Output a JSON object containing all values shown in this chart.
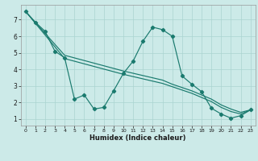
{
  "xlabel": "Humidex (Indice chaleur)",
  "xlim": [
    -0.5,
    23.5
  ],
  "ylim": [
    0.6,
    7.9
  ],
  "xticks": [
    0,
    1,
    2,
    3,
    4,
    5,
    6,
    7,
    8,
    9,
    10,
    11,
    12,
    13,
    14,
    15,
    16,
    17,
    18,
    19,
    20,
    21,
    22,
    23
  ],
  "yticks": [
    1,
    2,
    3,
    4,
    5,
    6,
    7
  ],
  "bg_color": "#cceae8",
  "line_color": "#1a7a6e",
  "grid_color": "#aad4d0",
  "line1_x": [
    0,
    1,
    2,
    3,
    4,
    5,
    6,
    7,
    8,
    9,
    10,
    11,
    12,
    13,
    14,
    15,
    16,
    17,
    18,
    19,
    20,
    21,
    22,
    23
  ],
  "line1_y": [
    7.5,
    6.85,
    6.3,
    5.1,
    4.7,
    2.2,
    2.45,
    1.6,
    1.7,
    2.7,
    3.75,
    4.5,
    5.7,
    6.55,
    6.4,
    6.0,
    3.6,
    3.1,
    2.65,
    1.65,
    1.3,
    1.05,
    1.2,
    1.55
  ],
  "line2_x": [
    0,
    4,
    10,
    14,
    15,
    16,
    17,
    18,
    19,
    20,
    21,
    22,
    23
  ],
  "line2_y": [
    7.5,
    4.85,
    3.9,
    3.35,
    3.1,
    2.9,
    2.7,
    2.45,
    2.2,
    1.85,
    1.6,
    1.4,
    1.55
  ],
  "line3_x": [
    0,
    4,
    10,
    14,
    15,
    16,
    17,
    18,
    19,
    20,
    21,
    22,
    23
  ],
  "line3_y": [
    7.5,
    4.65,
    3.7,
    3.15,
    2.95,
    2.75,
    2.55,
    2.3,
    2.05,
    1.7,
    1.45,
    1.3,
    1.55
  ]
}
